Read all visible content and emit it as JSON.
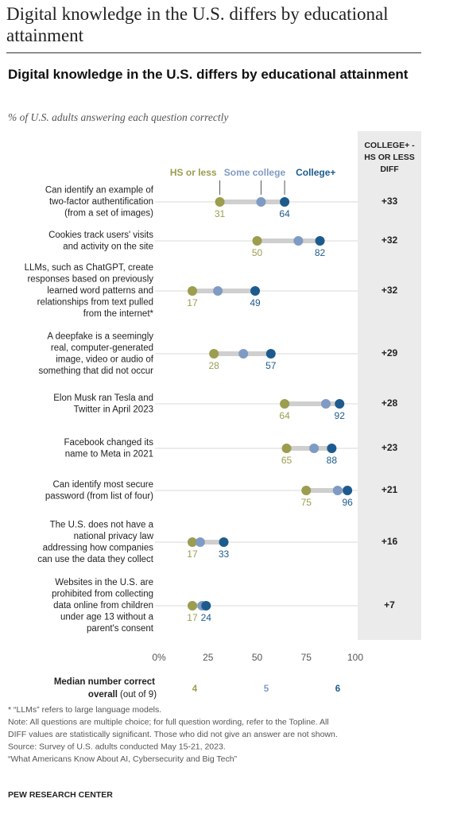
{
  "chart_data": {
    "type": "dot",
    "page_title": "Digital knowledge in the U.S. differs by educational attainment",
    "title": "Digital knowledge in the U.S. differs by educational attainment",
    "subtitle": "% of U.S. adults answering each question correctly",
    "categories": [
      [
        "Can identify an example of",
        "two-factor authentification",
        "(from a set of images)"
      ],
      [
        "Cookies track users' visits",
        "and activity on the site"
      ],
      [
        "LLMs, such as ChatGPT, create",
        "responses based on previously",
        "learned word patterns and",
        "relationships from text pulled",
        "from the internet*"
      ],
      [
        "A deepfake is a seemingly",
        "real, computer-generated",
        "image, video or audio of",
        "something that did not occur"
      ],
      [
        "Elon Musk ran Tesla and",
        "Twitter in April 2023"
      ],
      [
        "Facebook changed its",
        "name to Meta in 2021"
      ],
      [
        "Can identify most secure",
        "password (from list of four)"
      ],
      [
        "The U.S. does not have a",
        "national privacy law",
        "addressing how companies",
        "can use the data they collect"
      ],
      [
        "Websites in the U.S. are",
        "prohibited from collecting",
        "data online from children",
        "under age 13 without a",
        "parent's consent"
      ]
    ],
    "series": [
      {
        "name": "HS or less",
        "color": "#9c9d4e",
        "labels": true,
        "values": [
          31,
          50,
          17,
          28,
          64,
          65,
          75,
          17,
          17
        ],
        "median": 4
      },
      {
        "name": "Some college",
        "color": "#7f9bc4",
        "labels": false,
        "values": [
          52,
          71,
          30,
          43,
          85,
          79,
          91,
          21,
          22
        ],
        "median": 5
      },
      {
        "name": "College+",
        "color": "#1d5b8e",
        "labels": true,
        "values": [
          64,
          82,
          49,
          57,
          92,
          88,
          96,
          33,
          24
        ],
        "median": 6
      }
    ],
    "diff_header": [
      "COLLEGE+ -",
      "HS OR LESS",
      "DIFF"
    ],
    "diff": [
      "+33",
      "+32",
      "+32",
      "+29",
      "+28",
      "+23",
      "+21",
      "+16",
      "+7"
    ],
    "xlim": [
      0,
      100
    ],
    "xticks": [
      {
        "value": 0,
        "label": "0%"
      },
      25,
      50,
      75,
      100
    ],
    "median_label": [
      "Median number correct",
      "overall"
    ],
    "median_note": "(out of 9)",
    "notes": [
      "* “LLMs” refers to large language models.",
      "Note: All questions are multiple choice; for full question wording, refer to the Topline. All",
      "DIFF values are statistically significant. Those who did not give an answer are not shown.",
      "Source: Survey of U.S. adults conducted May 15-21, 2023.",
      "“What Americans Know About AI, Cybersecurity and Big Tech”"
    ],
    "source": "PEW RESEARCH CENTER"
  }
}
